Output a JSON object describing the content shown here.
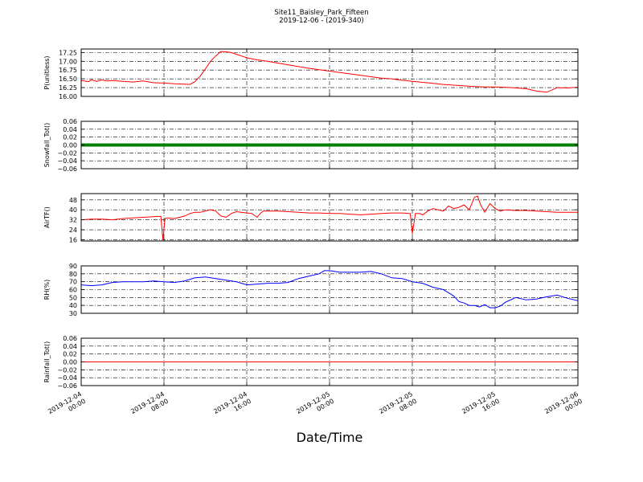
{
  "header": {
    "title": "Site11_Baisley_Park_Fifteen",
    "subtitle": "2019-12-06 - (2019-340)"
  },
  "x_axis": {
    "label": "Date/Time",
    "ticks": [
      {
        "line1": "2019-12-04",
        "line2": "00:00",
        "hours": 0
      },
      {
        "line1": "2019-12-04",
        "line2": "08:00",
        "hours": 8
      },
      {
        "line1": "2019-12-04",
        "line2": "16:00",
        "hours": 16
      },
      {
        "line1": "2019-12-05",
        "line2": "00:00",
        "hours": 24
      },
      {
        "line1": "2019-12-05",
        "line2": "08:00",
        "hours": 32
      },
      {
        "line1": "2019-12-05",
        "line2": "16:00",
        "hours": 40
      },
      {
        "line1": "2019-12-06",
        "line2": "00:00",
        "hours": 48
      }
    ]
  },
  "chart_data": [
    {
      "type": "line",
      "ylabel": "P(unitless)",
      "color": "#ff0000",
      "ylim": [
        16.0,
        17.35
      ],
      "yticks": [
        "16.00",
        "16.25",
        "16.50",
        "16.75",
        "17.00",
        "17.25"
      ],
      "grid": true,
      "x": [
        0,
        0.7,
        1,
        1.5,
        2,
        2.5,
        3,
        3.5,
        4,
        5,
        6,
        7,
        8,
        9,
        10,
        10.5,
        11,
        11.5,
        12,
        12.5,
        13,
        13.5,
        14,
        14.5,
        15,
        15.5,
        16,
        16.5,
        17,
        18,
        19,
        20,
        21,
        22,
        23,
        24,
        25,
        26,
        27,
        28,
        29,
        30,
        31,
        32,
        33,
        34,
        35,
        36,
        37,
        38,
        39,
        40,
        41,
        42,
        43,
        44,
        45,
        46,
        47,
        48
      ],
      "y": [
        16.45,
        16.42,
        16.47,
        16.43,
        16.47,
        16.44,
        16.45,
        16.44,
        16.43,
        16.41,
        16.44,
        16.39,
        16.38,
        16.36,
        16.35,
        16.34,
        16.42,
        16.58,
        16.78,
        17.0,
        17.15,
        17.28,
        17.27,
        17.25,
        17.2,
        17.15,
        17.1,
        17.07,
        17.04,
        17.0,
        16.95,
        16.9,
        16.85,
        16.8,
        16.76,
        16.72,
        16.68,
        16.64,
        16.6,
        16.56,
        16.52,
        16.5,
        16.46,
        16.43,
        16.4,
        16.37,
        16.34,
        16.32,
        16.3,
        16.28,
        16.27,
        16.27,
        16.26,
        16.24,
        16.22,
        16.15,
        16.12,
        16.25,
        16.24,
        16.26
      ]
    },
    {
      "type": "line",
      "ylabel": "Snowfall_Tot()",
      "color": "#008000",
      "ylim": [
        -0.06,
        0.06
      ],
      "yticks": [
        "−0.06",
        "−0.04",
        "−0.02",
        "0.00",
        "0.02",
        "0.04",
        "0.06"
      ],
      "grid": true,
      "x": [
        0,
        48
      ],
      "y": [
        0.0,
        0.0
      ]
    },
    {
      "type": "line",
      "ylabel": "AirTF()",
      "color": "#ff0000",
      "ylim": [
        15,
        53
      ],
      "yticks": [
        "16",
        "24",
        "32",
        "40",
        "48"
      ],
      "grid": true,
      "x": [
        0,
        1,
        2,
        3,
        4,
        5,
        6,
        7,
        7.7,
        7.9,
        8.1,
        8.4,
        9,
        9.5,
        10,
        10.5,
        11,
        11.5,
        12,
        12.5,
        13,
        13.5,
        14,
        14.5,
        15,
        16,
        16.5,
        17,
        17.3,
        17.6,
        18,
        19,
        20,
        21,
        22,
        23,
        24,
        25,
        26,
        27,
        28,
        29,
        30,
        31,
        31.8,
        32.0,
        32.3,
        32.7,
        33,
        33.5,
        34,
        34.5,
        35,
        35.5,
        36,
        36.5,
        37,
        37.5,
        38,
        38.3,
        38.6,
        39,
        39.5,
        40,
        40.5,
        41,
        42,
        43,
        44,
        45,
        46,
        47,
        48
      ],
      "y": [
        32,
        32.5,
        32.5,
        32,
        33,
        33.5,
        34,
        34.5,
        34.8,
        16,
        33,
        33.5,
        33,
        34,
        35,
        37,
        38,
        38,
        39,
        40,
        39,
        35,
        34,
        37,
        38.5,
        37.5,
        37,
        34,
        37,
        39,
        39,
        39,
        38.5,
        38,
        37.5,
        37.5,
        37,
        37,
        36.5,
        36,
        36.5,
        37,
        37.5,
        37.5,
        37,
        21,
        37,
        37,
        36,
        39,
        41,
        40,
        39,
        43,
        41,
        42,
        44,
        40,
        50,
        51,
        44,
        38,
        45,
        41,
        39,
        40,
        39.5,
        39.5,
        39,
        38.5,
        38,
        38,
        38
      ]
    },
    {
      "type": "line",
      "ylabel": "RH(%)",
      "color": "#0000ff",
      "ylim": [
        30,
        90
      ],
      "yticks": [
        "30",
        "40",
        "50",
        "60",
        "70",
        "80",
        "90"
      ],
      "grid": true,
      "x": [
        0,
        1,
        2,
        3,
        4,
        5,
        6,
        7,
        8,
        9,
        10,
        11,
        12,
        13,
        14,
        15,
        15.5,
        16,
        17,
        18,
        19,
        20,
        21,
        22,
        23,
        23.5,
        24,
        25,
        26,
        27,
        28,
        29,
        30,
        31,
        32,
        33,
        34,
        35,
        36,
        36.5,
        37,
        37.5,
        38,
        38.5,
        39,
        39.5,
        40,
        40.5,
        41,
        42,
        43,
        44,
        45,
        46,
        47,
        48
      ],
      "y": [
        66,
        65,
        66,
        69,
        70,
        70,
        70,
        71,
        70,
        69,
        71,
        75,
        76,
        74,
        72,
        70,
        68,
        66,
        67,
        68,
        68,
        69,
        74,
        77,
        80,
        84,
        84,
        82,
        82,
        82,
        83,
        80,
        75,
        74,
        70,
        68,
        63,
        60,
        52,
        45,
        43,
        40,
        40,
        38,
        41,
        37,
        37,
        39,
        44,
        50,
        47,
        48,
        51,
        53,
        49,
        46
      ]
    },
    {
      "type": "line",
      "ylabel": "Rainfall_Tot()",
      "color": "#ff0000",
      "ylim": [
        -0.06,
        0.06
      ],
      "yticks": [
        "−0.06",
        "−0.04",
        "−0.02",
        "0.00",
        "0.02",
        "0.04",
        "0.06"
      ],
      "grid": true,
      "x": [
        0,
        48
      ],
      "y": [
        0.0,
        0.0
      ]
    }
  ]
}
